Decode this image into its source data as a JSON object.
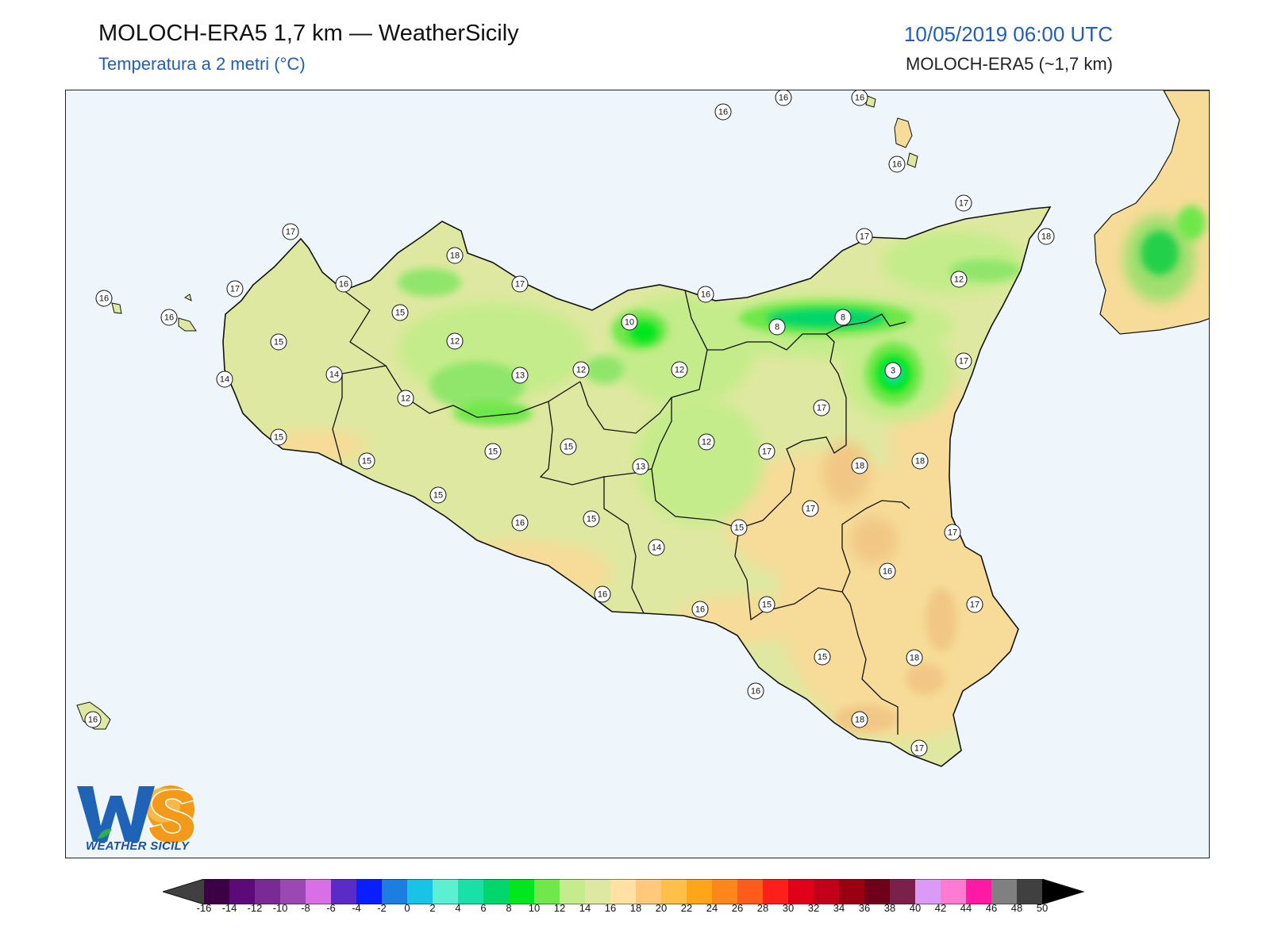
{
  "header": {
    "title": "MOLOCH-ERA5 1,7 km — WeatherSicily",
    "subtitle": "Temperatura a 2 metri (°C)",
    "datetime": "10/05/2019 06:00 UTC",
    "model": "MOLOCH-ERA5 (~1,7 km)"
  },
  "logo": {
    "letters": "WS",
    "text": "WEATHER SICILY"
  },
  "legend": {
    "ticks": [
      "-16",
      "-14",
      "-12",
      "-10",
      "-8",
      "-6",
      "-4",
      "-2",
      "0",
      "2",
      "4",
      "6",
      "8",
      "10",
      "12",
      "14",
      "16",
      "18",
      "20",
      "22",
      "24",
      "26",
      "28",
      "30",
      "32",
      "34",
      "36",
      "38",
      "40",
      "42",
      "44",
      "46",
      "48",
      "50"
    ],
    "colors": [
      "#3d0046",
      "#5c0a7a",
      "#7a2a94",
      "#9a49b3",
      "#d96fe6",
      "#5b2bc7",
      "#0a1fff",
      "#1a7fe0",
      "#19c3e6",
      "#5cf0d2",
      "#19e0a6",
      "#00d66b",
      "#00e61f",
      "#6ee84a",
      "#c4ec8a",
      "#dfe8a0",
      "#ffe2a3",
      "#ffc87a",
      "#ffc04a",
      "#ffa51a",
      "#ff861a",
      "#ff5b1a",
      "#ff1f1a",
      "#e0001a",
      "#c2001a",
      "#990012",
      "#6e0019",
      "#7a2049",
      "#d99bf5",
      "#ff7ad1",
      "#ff1aa6",
      "#808080",
      "#404040"
    ],
    "under_color": "#404040",
    "over_color": "#000000"
  },
  "stations": [
    {
      "v": "16"
    },
    {
      "v": "16"
    },
    {
      "v": "16"
    },
    {
      "v": "16"
    },
    {
      "v": "17"
    },
    {
      "v": "18"
    },
    {
      "v": "17"
    },
    {
      "v": "17"
    },
    {
      "v": "18"
    },
    {
      "v": "16"
    },
    {
      "v": "17"
    },
    {
      "v": "12"
    },
    {
      "v": "16"
    },
    {
      "v": "16"
    },
    {
      "v": "17"
    },
    {
      "v": "15"
    },
    {
      "v": "10"
    },
    {
      "v": "16"
    },
    {
      "v": "8"
    },
    {
      "v": "8"
    },
    {
      "v": "15"
    },
    {
      "v": "12"
    },
    {
      "v": "3"
    },
    {
      "v": "17"
    },
    {
      "v": "14"
    },
    {
      "v": "14"
    },
    {
      "v": "12"
    },
    {
      "v": "13"
    },
    {
      "v": "12"
    },
    {
      "v": "12"
    },
    {
      "v": "17"
    },
    {
      "v": "15"
    },
    {
      "v": "15"
    },
    {
      "v": "15"
    },
    {
      "v": "12"
    },
    {
      "v": "17"
    },
    {
      "v": "18"
    },
    {
      "v": "18"
    },
    {
      "v": "13"
    },
    {
      "v": "15"
    },
    {
      "v": "15"
    },
    {
      "v": "17"
    },
    {
      "v": "16"
    },
    {
      "v": "15"
    },
    {
      "v": "15"
    },
    {
      "v": "17"
    },
    {
      "v": "14"
    },
    {
      "v": "16"
    },
    {
      "v": "16"
    },
    {
      "v": "16"
    },
    {
      "v": "15"
    },
    {
      "v": "17"
    },
    {
      "v": "15"
    },
    {
      "v": "18"
    },
    {
      "v": "16"
    },
    {
      "v": "18"
    },
    {
      "v": "17"
    },
    {
      "v": "16"
    }
  ]
}
